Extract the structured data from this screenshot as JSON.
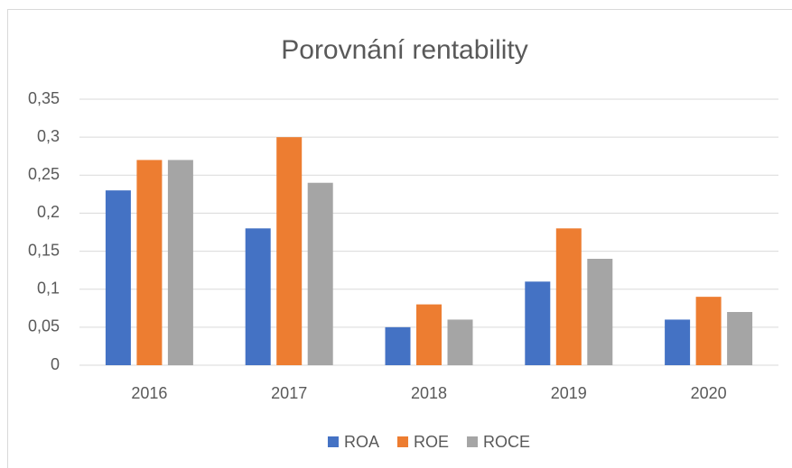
{
  "chart_data": {
    "type": "bar",
    "title": "Porovnání rentability",
    "categories": [
      "2016",
      "2017",
      "2018",
      "2019",
      "2020"
    ],
    "series": [
      {
        "name": "ROA",
        "color": "#4472c4",
        "values": [
          0.23,
          0.18,
          0.05,
          0.11,
          0.06
        ]
      },
      {
        "name": "ROE",
        "color": "#ed7d31",
        "values": [
          0.27,
          0.3,
          0.08,
          0.18,
          0.09
        ]
      },
      {
        "name": "ROCE",
        "color": "#a5a5a5",
        "values": [
          0.27,
          0.24,
          0.06,
          0.14,
          0.07
        ]
      }
    ],
    "ylim": [
      0,
      0.35
    ],
    "yticks": [
      0,
      {
        "value": 0.05,
        "label": "0,05"
      },
      {
        "value": 0.1,
        "label": "0,1"
      },
      {
        "value": 0.15,
        "label": "0,15"
      },
      {
        "value": 0.2,
        "label": "0,2"
      },
      {
        "value": 0.25,
        "label": "0,25"
      },
      {
        "value": 0.3,
        "label": "0,3"
      },
      {
        "value": 0.35,
        "label": "0,35"
      }
    ],
    "grid": true,
    "legend": "bottom"
  }
}
